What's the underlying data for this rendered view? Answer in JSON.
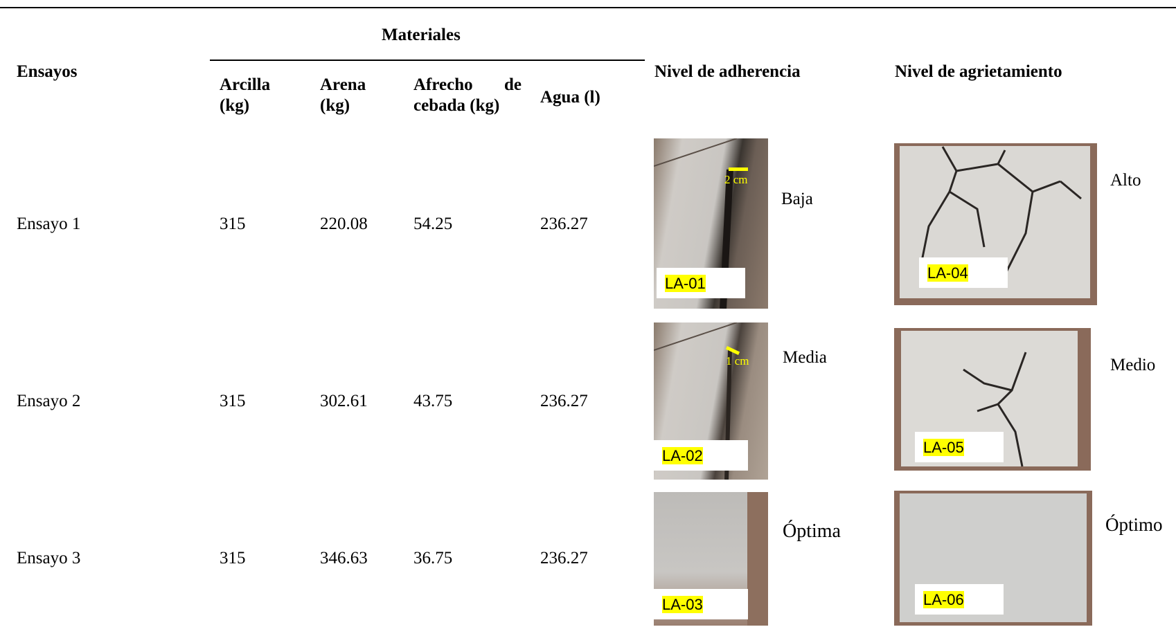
{
  "header": {
    "materiales": "Materiales",
    "ensayos": "Ensayos",
    "columns": [
      "Arcilla (kg)",
      "Arena (kg)",
      "Afrecho de cebada (kg)",
      "Agua (l)"
    ],
    "adherencia": "Nivel de adherencia",
    "agrietamiento": "Nivel de agrietamiento"
  },
  "rows": [
    {
      "ensayo": "Ensayo 1",
      "arcilla": 315,
      "arena": 220.08,
      "afrecho": 54.25,
      "agua": 236.27,
      "adherencia": {
        "label": "LA-01",
        "scale": "2 cm",
        "level": "Baja"
      },
      "agrietamiento": {
        "label": "LA-04",
        "level": "Alto"
      }
    },
    {
      "ensayo": "Ensayo 2",
      "arcilla": 315,
      "arena": 302.61,
      "afrecho": 43.75,
      "agua": 236.27,
      "adherencia": {
        "label": "LA-02",
        "scale": "1 cm",
        "level": "Media"
      },
      "agrietamiento": {
        "label": "LA-05",
        "level": "Medio"
      }
    },
    {
      "ensayo": "Ensayo 3",
      "arcilla": 315,
      "arena": 346.63,
      "afrecho": 36.75,
      "agua": 236.27,
      "adherencia": {
        "label": "LA-03",
        "level": "Óptima"
      },
      "agrietamiento": {
        "label": "LA-06",
        "level": "Óptimo"
      }
    }
  ]
}
